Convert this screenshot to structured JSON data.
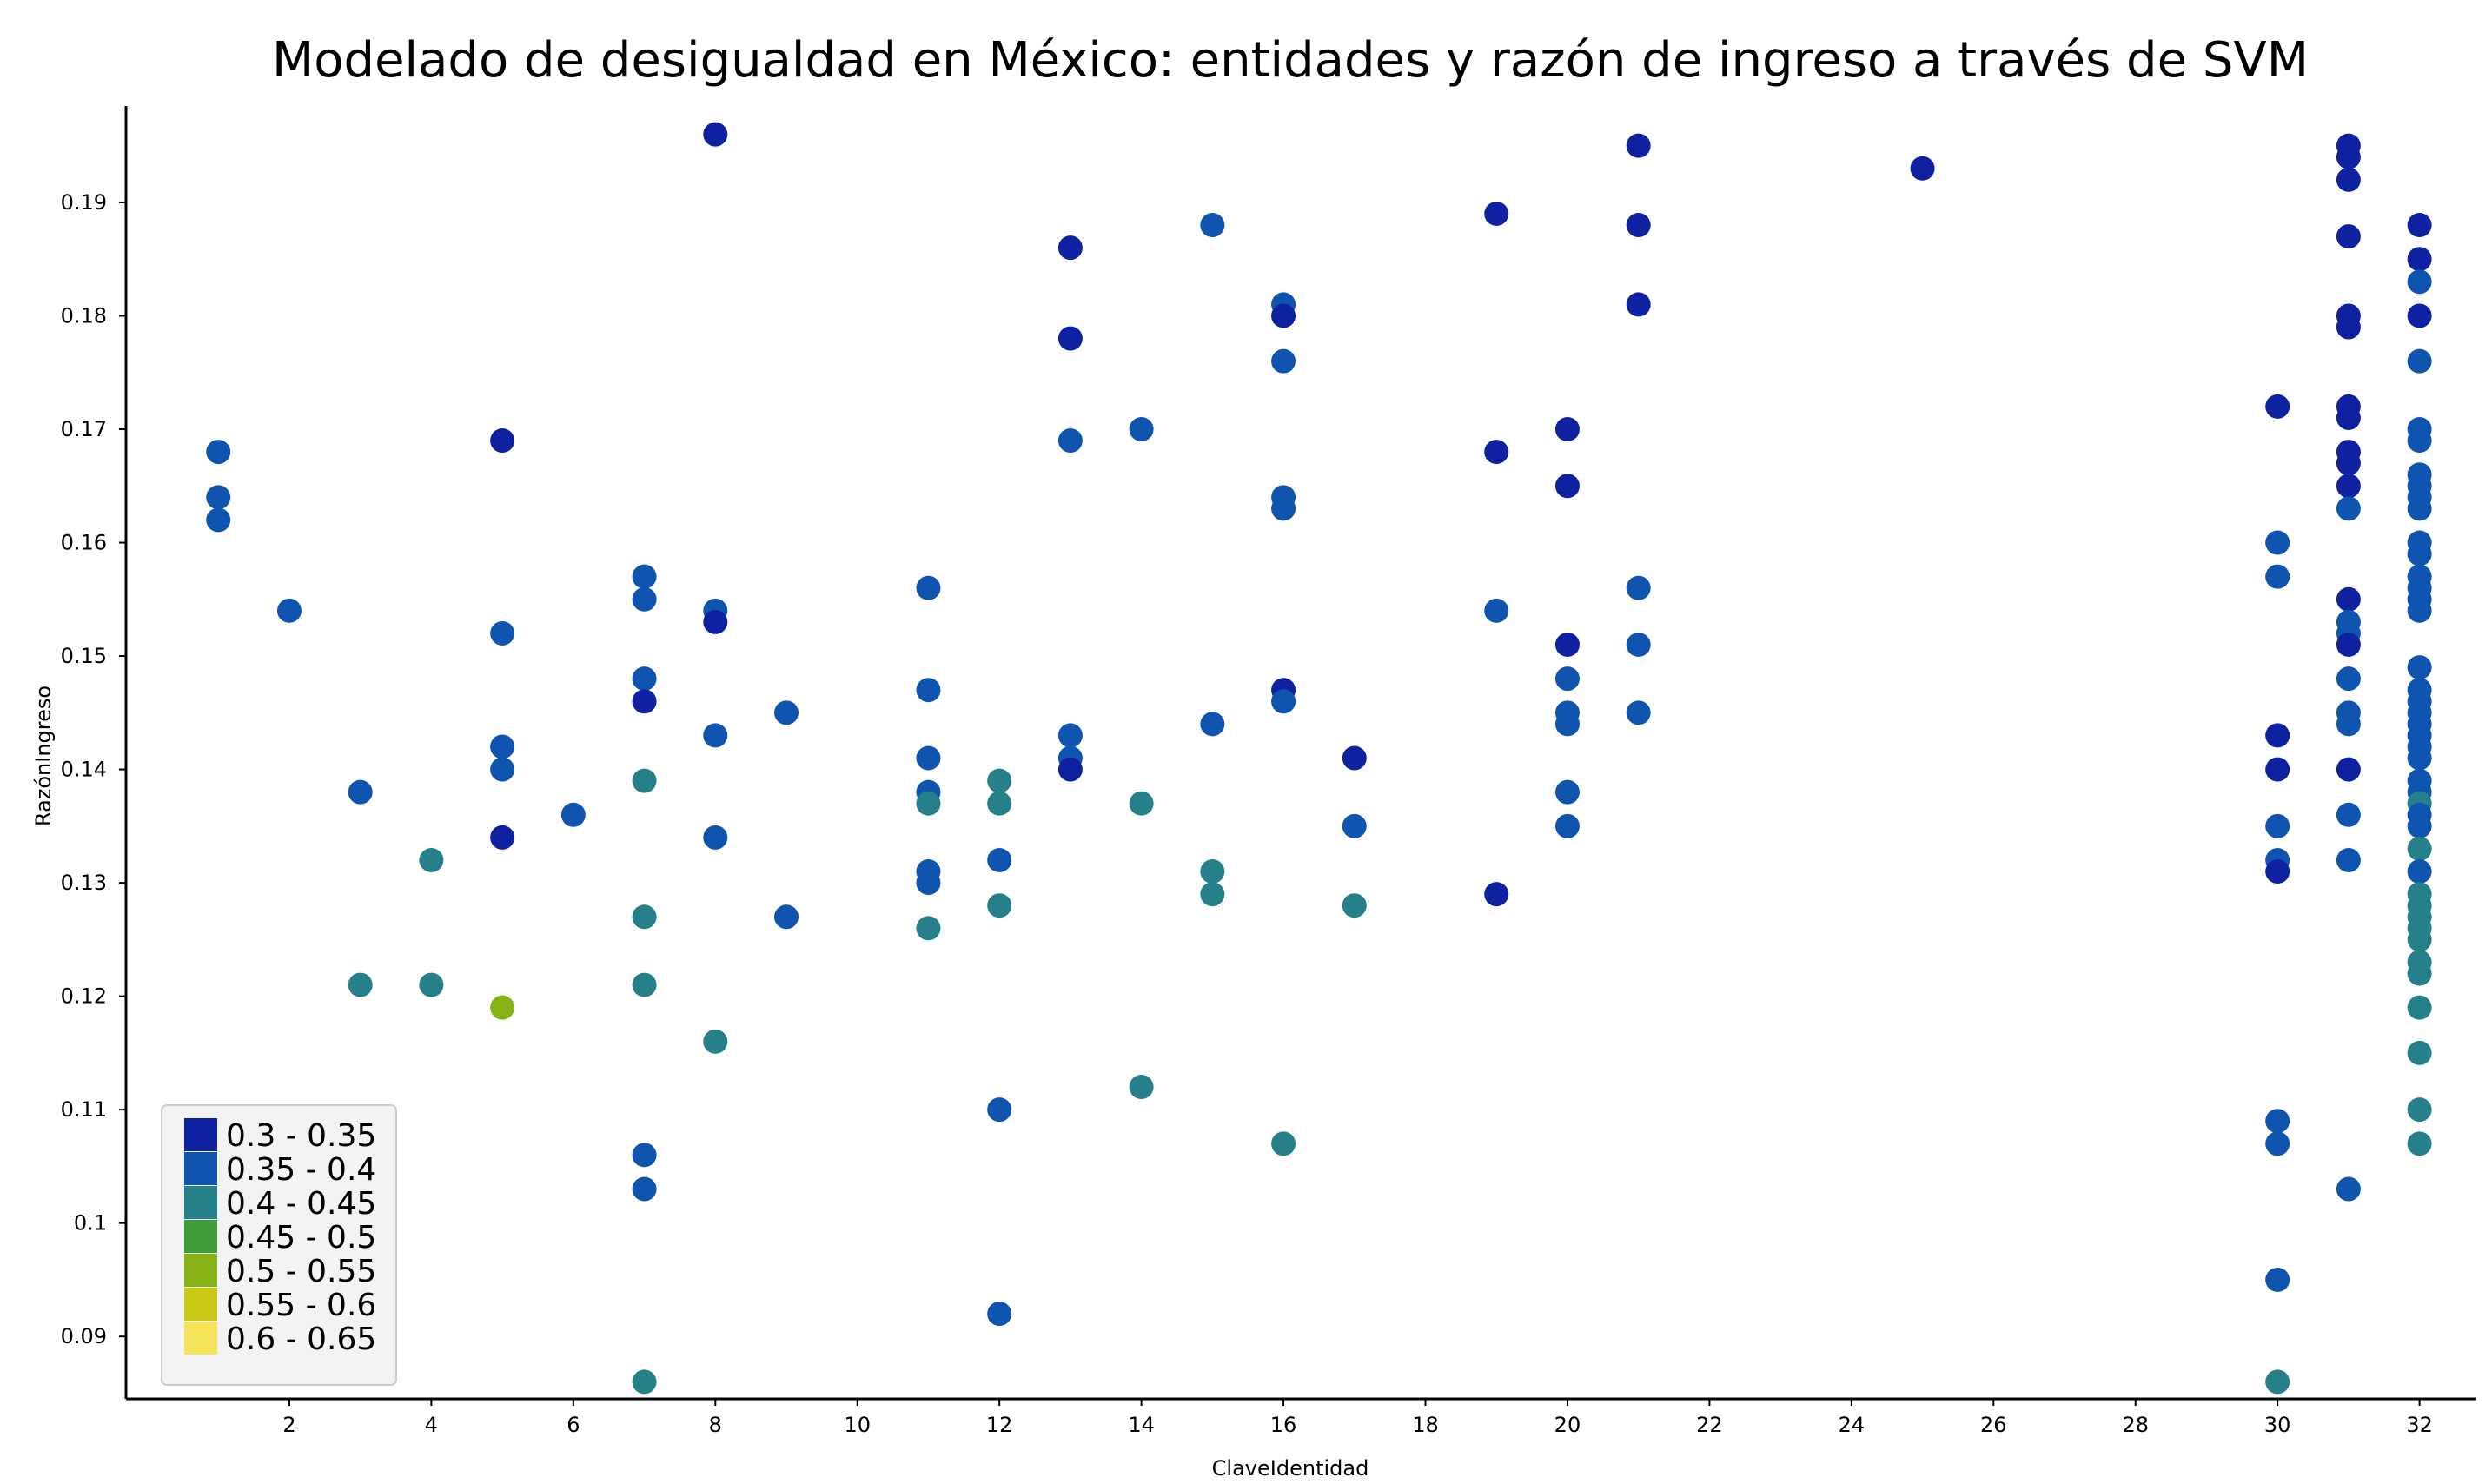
{
  "chart_data": {
    "type": "scatter",
    "title": "Modelado de desigualdad en México: entidades y razón de ingreso a través de SVM",
    "xlabel": "ClaveIdentidad",
    "ylabel": "RazónIngreso",
    "xlim": [
      -0.3,
      32.8
    ],
    "ylim": [
      0.0845,
      0.1985
    ],
    "xticks": [
      2,
      4,
      6,
      8,
      10,
      12,
      14,
      16,
      18,
      20,
      22,
      24,
      26,
      28,
      30,
      32
    ],
    "yticks": [
      0.09,
      0.1,
      0.11,
      0.12,
      0.13,
      0.14,
      0.15,
      0.16,
      0.17,
      0.18,
      0.19
    ],
    "ytick_labels": [
      "0.09",
      "0.1",
      "0.11",
      "0.12",
      "0.13",
      "0.14",
      "0.15",
      "0.16",
      "0.17",
      "0.18",
      "0.19"
    ],
    "grid": false,
    "legend_position": "bottom-left",
    "legend": [
      {
        "label": "0.3 - 0.35",
        "color": "#0d21a1"
      },
      {
        "label": "0.35 - 0.4",
        "color": "#0f55b0"
      },
      {
        "label": "0.4 - 0.45",
        "color": "#26808a"
      },
      {
        "label": "0.45 - 0.5",
        "color": "#3f9c3a"
      },
      {
        "label": "0.5 - 0.55",
        "color": "#86b214"
      },
      {
        "label": "0.55 - 0.6",
        "color": "#c9c814"
      },
      {
        "label": "0.6 - 0.65",
        "color": "#f5e35a"
      }
    ],
    "points": [
      {
        "x": 1,
        "y": 0.168,
        "c": 1
      },
      {
        "x": 1,
        "y": 0.164,
        "c": 1
      },
      {
        "x": 1,
        "y": 0.162,
        "c": 1
      },
      {
        "x": 2,
        "y": 0.154,
        "c": 1
      },
      {
        "x": 3,
        "y": 0.138,
        "c": 1
      },
      {
        "x": 3,
        "y": 0.121,
        "c": 2
      },
      {
        "x": 4,
        "y": 0.132,
        "c": 2
      },
      {
        "x": 4,
        "y": 0.121,
        "c": 2
      },
      {
        "x": 5,
        "y": 0.169,
        "c": 0
      },
      {
        "x": 5,
        "y": 0.152,
        "c": 1
      },
      {
        "x": 5,
        "y": 0.142,
        "c": 1
      },
      {
        "x": 5,
        "y": 0.14,
        "c": 1
      },
      {
        "x": 5,
        "y": 0.134,
        "c": 0
      },
      {
        "x": 5,
        "y": 0.119,
        "c": 4
      },
      {
        "x": 6,
        "y": 0.136,
        "c": 1
      },
      {
        "x": 7,
        "y": 0.157,
        "c": 1
      },
      {
        "x": 7,
        "y": 0.155,
        "c": 1
      },
      {
        "x": 7,
        "y": 0.148,
        "c": 1
      },
      {
        "x": 7,
        "y": 0.146,
        "c": 0
      },
      {
        "x": 7,
        "y": 0.139,
        "c": 2
      },
      {
        "x": 7,
        "y": 0.127,
        "c": 2
      },
      {
        "x": 7,
        "y": 0.121,
        "c": 2
      },
      {
        "x": 7,
        "y": 0.106,
        "c": 1
      },
      {
        "x": 7,
        "y": 0.103,
        "c": 1
      },
      {
        "x": 7,
        "y": 0.086,
        "c": 2
      },
      {
        "x": 8,
        "y": 0.196,
        "c": 0
      },
      {
        "x": 8,
        "y": 0.154,
        "c": 1
      },
      {
        "x": 8,
        "y": 0.153,
        "c": 0
      },
      {
        "x": 8,
        "y": 0.143,
        "c": 1
      },
      {
        "x": 8,
        "y": 0.134,
        "c": 1
      },
      {
        "x": 8,
        "y": 0.116,
        "c": 2
      },
      {
        "x": 9,
        "y": 0.145,
        "c": 1
      },
      {
        "x": 9,
        "y": 0.127,
        "c": 1
      },
      {
        "x": 11,
        "y": 0.156,
        "c": 1
      },
      {
        "x": 11,
        "y": 0.147,
        "c": 1
      },
      {
        "x": 11,
        "y": 0.141,
        "c": 1
      },
      {
        "x": 11,
        "y": 0.138,
        "c": 1
      },
      {
        "x": 11,
        "y": 0.137,
        "c": 2
      },
      {
        "x": 11,
        "y": 0.131,
        "c": 1
      },
      {
        "x": 11,
        "y": 0.13,
        "c": 1
      },
      {
        "x": 11,
        "y": 0.126,
        "c": 2
      },
      {
        "x": 12,
        "y": 0.139,
        "c": 2
      },
      {
        "x": 12,
        "y": 0.137,
        "c": 2
      },
      {
        "x": 12,
        "y": 0.132,
        "c": 1
      },
      {
        "x": 12,
        "y": 0.128,
        "c": 2
      },
      {
        "x": 12,
        "y": 0.11,
        "c": 1
      },
      {
        "x": 12,
        "y": 0.092,
        "c": 1
      },
      {
        "x": 13,
        "y": 0.186,
        "c": 0
      },
      {
        "x": 13,
        "y": 0.178,
        "c": 0
      },
      {
        "x": 13,
        "y": 0.169,
        "c": 1
      },
      {
        "x": 13,
        "y": 0.143,
        "c": 1
      },
      {
        "x": 13,
        "y": 0.141,
        "c": 1
      },
      {
        "x": 13,
        "y": 0.14,
        "c": 0
      },
      {
        "x": 14,
        "y": 0.17,
        "c": 1
      },
      {
        "x": 14,
        "y": 0.137,
        "c": 2
      },
      {
        "x": 14,
        "y": 0.112,
        "c": 2
      },
      {
        "x": 15,
        "y": 0.188,
        "c": 1
      },
      {
        "x": 15,
        "y": 0.144,
        "c": 1
      },
      {
        "x": 15,
        "y": 0.131,
        "c": 2
      },
      {
        "x": 15,
        "y": 0.129,
        "c": 2
      },
      {
        "x": 16,
        "y": 0.181,
        "c": 1
      },
      {
        "x": 16,
        "y": 0.18,
        "c": 0
      },
      {
        "x": 16,
        "y": 0.176,
        "c": 1
      },
      {
        "x": 16,
        "y": 0.164,
        "c": 1
      },
      {
        "x": 16,
        "y": 0.163,
        "c": 1
      },
      {
        "x": 16,
        "y": 0.147,
        "c": 0
      },
      {
        "x": 16,
        "y": 0.146,
        "c": 1
      },
      {
        "x": 16,
        "y": 0.107,
        "c": 2
      },
      {
        "x": 17,
        "y": 0.141,
        "c": 0
      },
      {
        "x": 17,
        "y": 0.135,
        "c": 1
      },
      {
        "x": 17,
        "y": 0.128,
        "c": 2
      },
      {
        "x": 19,
        "y": 0.189,
        "c": 0
      },
      {
        "x": 19,
        "y": 0.168,
        "c": 0
      },
      {
        "x": 19,
        "y": 0.154,
        "c": 1
      },
      {
        "x": 19,
        "y": 0.129,
        "c": 0
      },
      {
        "x": 20,
        "y": 0.17,
        "c": 0
      },
      {
        "x": 20,
        "y": 0.165,
        "c": 0
      },
      {
        "x": 20,
        "y": 0.151,
        "c": 0
      },
      {
        "x": 20,
        "y": 0.148,
        "c": 1
      },
      {
        "x": 20,
        "y": 0.145,
        "c": 1
      },
      {
        "x": 20,
        "y": 0.144,
        "c": 1
      },
      {
        "x": 20,
        "y": 0.138,
        "c": 1
      },
      {
        "x": 20,
        "y": 0.135,
        "c": 1
      },
      {
        "x": 21,
        "y": 0.195,
        "c": 0
      },
      {
        "x": 21,
        "y": 0.188,
        "c": 0
      },
      {
        "x": 21,
        "y": 0.181,
        "c": 0
      },
      {
        "x": 21,
        "y": 0.156,
        "c": 1
      },
      {
        "x": 21,
        "y": 0.151,
        "c": 1
      },
      {
        "x": 21,
        "y": 0.145,
        "c": 1
      },
      {
        "x": 25,
        "y": 0.193,
        "c": 0
      },
      {
        "x": 30,
        "y": 0.172,
        "c": 0
      },
      {
        "x": 30,
        "y": 0.16,
        "c": 1
      },
      {
        "x": 30,
        "y": 0.157,
        "c": 1
      },
      {
        "x": 30,
        "y": 0.143,
        "c": 0
      },
      {
        "x": 30,
        "y": 0.14,
        "c": 0
      },
      {
        "x": 30,
        "y": 0.135,
        "c": 1
      },
      {
        "x": 30,
        "y": 0.132,
        "c": 1
      },
      {
        "x": 30,
        "y": 0.131,
        "c": 0
      },
      {
        "x": 30,
        "y": 0.109,
        "c": 1
      },
      {
        "x": 30,
        "y": 0.107,
        "c": 1
      },
      {
        "x": 30,
        "y": 0.095,
        "c": 1
      },
      {
        "x": 30,
        "y": 0.086,
        "c": 2
      },
      {
        "x": 31,
        "y": 0.195,
        "c": 0
      },
      {
        "x": 31,
        "y": 0.194,
        "c": 0
      },
      {
        "x": 31,
        "y": 0.192,
        "c": 0
      },
      {
        "x": 31,
        "y": 0.187,
        "c": 0
      },
      {
        "x": 31,
        "y": 0.18,
        "c": 0
      },
      {
        "x": 31,
        "y": 0.179,
        "c": 0
      },
      {
        "x": 31,
        "y": 0.172,
        "c": 0
      },
      {
        "x": 31,
        "y": 0.171,
        "c": 0
      },
      {
        "x": 31,
        "y": 0.168,
        "c": 0
      },
      {
        "x": 31,
        "y": 0.167,
        "c": 0
      },
      {
        "x": 31,
        "y": 0.165,
        "c": 0
      },
      {
        "x": 31,
        "y": 0.163,
        "c": 1
      },
      {
        "x": 31,
        "y": 0.155,
        "c": 0
      },
      {
        "x": 31,
        "y": 0.153,
        "c": 1
      },
      {
        "x": 31,
        "y": 0.152,
        "c": 1
      },
      {
        "x": 31,
        "y": 0.151,
        "c": 0
      },
      {
        "x": 31,
        "y": 0.148,
        "c": 1
      },
      {
        "x": 31,
        "y": 0.145,
        "c": 1
      },
      {
        "x": 31,
        "y": 0.144,
        "c": 1
      },
      {
        "x": 31,
        "y": 0.14,
        "c": 0
      },
      {
        "x": 31,
        "y": 0.136,
        "c": 1
      },
      {
        "x": 31,
        "y": 0.132,
        "c": 1
      },
      {
        "x": 31,
        "y": 0.103,
        "c": 1
      },
      {
        "x": 32,
        "y": 0.188,
        "c": 0
      },
      {
        "x": 32,
        "y": 0.185,
        "c": 0
      },
      {
        "x": 32,
        "y": 0.183,
        "c": 1
      },
      {
        "x": 32,
        "y": 0.18,
        "c": 0
      },
      {
        "x": 32,
        "y": 0.176,
        "c": 1
      },
      {
        "x": 32,
        "y": 0.17,
        "c": 1
      },
      {
        "x": 32,
        "y": 0.169,
        "c": 1
      },
      {
        "x": 32,
        "y": 0.166,
        "c": 1
      },
      {
        "x": 32,
        "y": 0.165,
        "c": 1
      },
      {
        "x": 32,
        "y": 0.164,
        "c": 1
      },
      {
        "x": 32,
        "y": 0.163,
        "c": 1
      },
      {
        "x": 32,
        "y": 0.16,
        "c": 1
      },
      {
        "x": 32,
        "y": 0.159,
        "c": 1
      },
      {
        "x": 32,
        "y": 0.157,
        "c": 1
      },
      {
        "x": 32,
        "y": 0.156,
        "c": 1
      },
      {
        "x": 32,
        "y": 0.155,
        "c": 1
      },
      {
        "x": 32,
        "y": 0.154,
        "c": 1
      },
      {
        "x": 32,
        "y": 0.149,
        "c": 1
      },
      {
        "x": 32,
        "y": 0.147,
        "c": 1
      },
      {
        "x": 32,
        "y": 0.146,
        "c": 1
      },
      {
        "x": 32,
        "y": 0.145,
        "c": 1
      },
      {
        "x": 32,
        "y": 0.144,
        "c": 1
      },
      {
        "x": 32,
        "y": 0.143,
        "c": 1
      },
      {
        "x": 32,
        "y": 0.142,
        "c": 1
      },
      {
        "x": 32,
        "y": 0.141,
        "c": 1
      },
      {
        "x": 32,
        "y": 0.139,
        "c": 1
      },
      {
        "x": 32,
        "y": 0.138,
        "c": 1
      },
      {
        "x": 32,
        "y": 0.137,
        "c": 2
      },
      {
        "x": 32,
        "y": 0.136,
        "c": 1
      },
      {
        "x": 32,
        "y": 0.135,
        "c": 1
      },
      {
        "x": 32,
        "y": 0.133,
        "c": 2
      },
      {
        "x": 32,
        "y": 0.131,
        "c": 1
      },
      {
        "x": 32,
        "y": 0.129,
        "c": 2
      },
      {
        "x": 32,
        "y": 0.128,
        "c": 2
      },
      {
        "x": 32,
        "y": 0.127,
        "c": 2
      },
      {
        "x": 32,
        "y": 0.126,
        "c": 2
      },
      {
        "x": 32,
        "y": 0.125,
        "c": 2
      },
      {
        "x": 32,
        "y": 0.123,
        "c": 2
      },
      {
        "x": 32,
        "y": 0.122,
        "c": 2
      },
      {
        "x": 32,
        "y": 0.119,
        "c": 2
      },
      {
        "x": 32,
        "y": 0.115,
        "c": 2
      },
      {
        "x": 32,
        "y": 0.11,
        "c": 2
      },
      {
        "x": 32,
        "y": 0.107,
        "c": 2
      }
    ]
  }
}
